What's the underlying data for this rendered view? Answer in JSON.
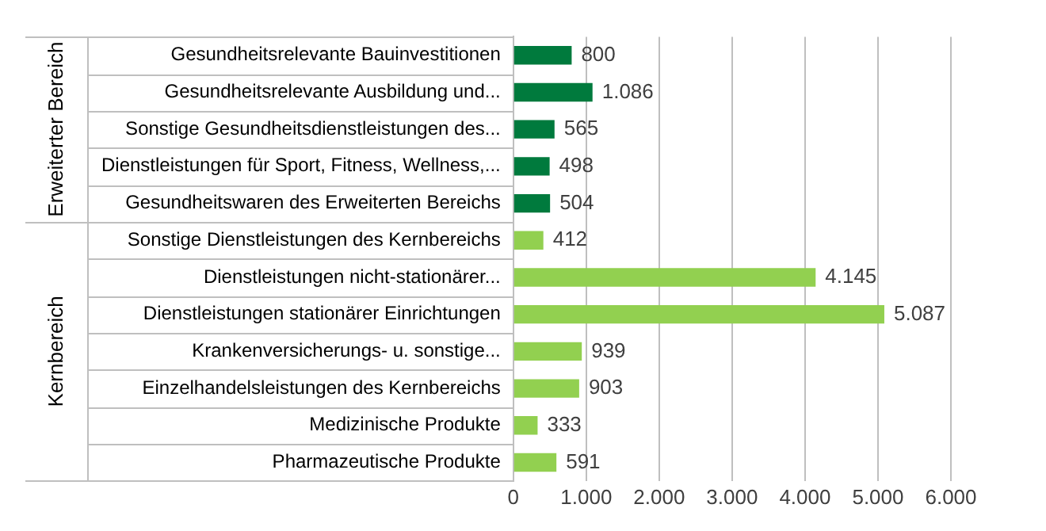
{
  "chart_data": {
    "type": "bar",
    "orientation": "horizontal",
    "categories": [
      "Gesundheitsrelevante Bauinvestitionen",
      "Gesundheitsrelevante Ausbildung und...",
      "Sonstige Gesundheitsdienstleistungen des...",
      "Dienstleistungen für Sport, Fitness, Wellness,...",
      "Gesundheitswaren des Erweiterten Bereichs",
      "Sonstige Dienstleistungen des Kernbereichs",
      "Dienstleistungen nicht-stationärer...",
      "Dienstleistungen stationärer Einrichtungen",
      "Krankenversicherungs- u. sonstige...",
      "Einzelhandelsleistungen des Kernbereichs",
      "Medizinische Produkte",
      "Pharmazeutische Produkte"
    ],
    "series": [
      {
        "name": "Erweiterter Bereich",
        "color": "#007a3d",
        "values": [
          800,
          1086,
          565,
          498,
          504,
          null,
          null,
          null,
          null,
          null,
          null,
          null
        ],
        "value_labels": [
          "800",
          "1.086",
          "565",
          "498",
          "504",
          null,
          null,
          null,
          null,
          null,
          null,
          null
        ]
      },
      {
        "name": "Kernbereich",
        "color": "#92d050",
        "values": [
          null,
          null,
          null,
          null,
          null,
          412,
          4145,
          5087,
          939,
          903,
          333,
          591
        ],
        "value_labels": [
          null,
          null,
          null,
          null,
          null,
          "412",
          "4.145",
          "5.087",
          "939",
          "903",
          "333",
          "591"
        ]
      }
    ],
    "xlim": [
      0,
      6000
    ],
    "xticks": [
      0,
      {
        "value": 1000,
        "label": "1.000"
      },
      {
        "value": 2000,
        "label": "2.000"
      },
      {
        "value": 3000,
        "label": "3.000"
      },
      {
        "value": 4000,
        "label": "4.000"
      },
      {
        "value": 5000,
        "label": "5.000"
      },
      {
        "value": 6000,
        "label": "6.000"
      }
    ],
    "grid": "x",
    "legend": false
  }
}
